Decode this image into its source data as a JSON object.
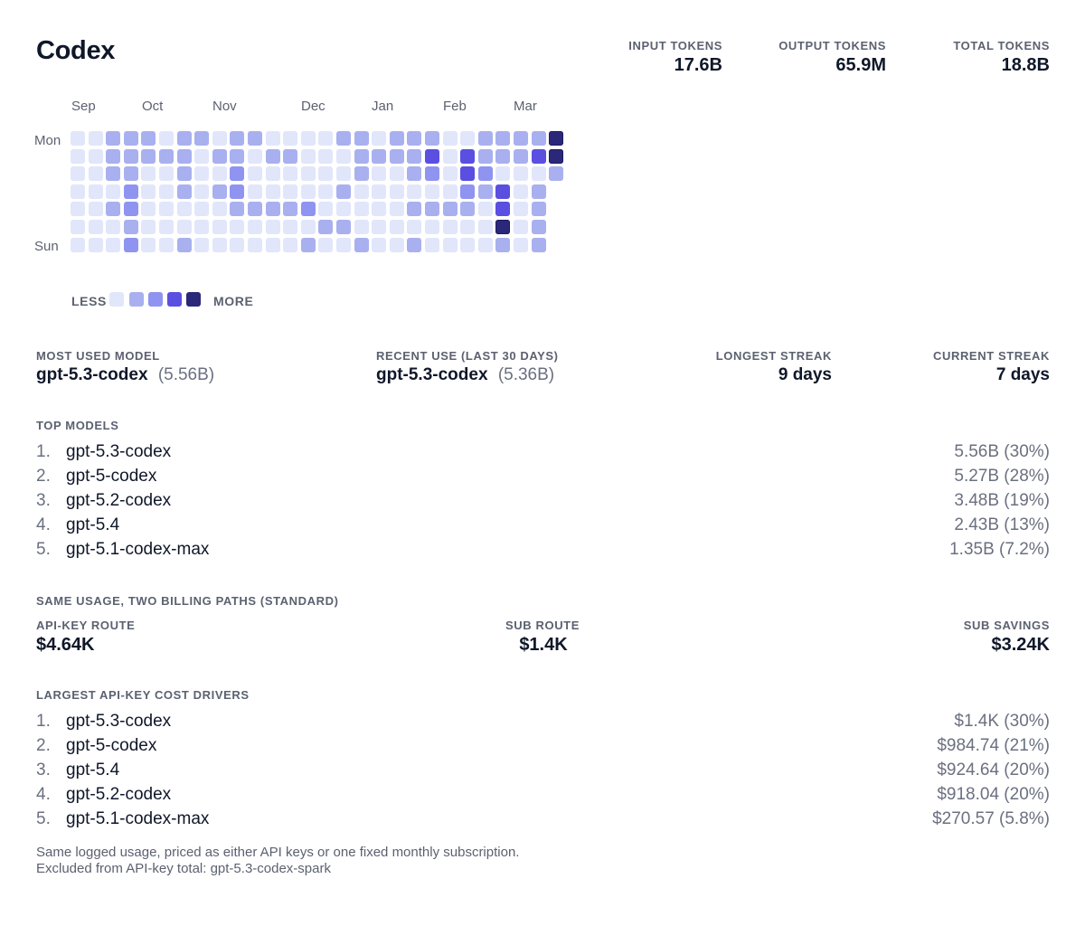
{
  "title": "Codex",
  "stats": [
    {
      "label": "INPUT TOKENS",
      "value": "17.6B"
    },
    {
      "label": "OUTPUT TOKENS",
      "value": "65.9M"
    },
    {
      "label": "TOTAL TOKENS",
      "value": "18.8B"
    }
  ],
  "heatmap": {
    "months": [
      "Sep",
      "Oct",
      "Nov",
      "Dec",
      "Jan",
      "Feb",
      "Mar"
    ],
    "day_labels": [
      "Mon",
      "Sun"
    ],
    "colors": [
      "#e1e6fa",
      "#a9b0ef",
      "#8f94f0",
      "#5a4fe0",
      "#2b287a"
    ],
    "levels": [
      [
        0,
        0,
        1,
        1,
        1,
        0,
        1,
        1,
        0,
        1,
        1,
        0,
        0,
        0,
        0,
        1,
        1,
        0,
        1,
        1,
        1,
        0,
        0,
        1,
        1,
        1,
        1,
        4
      ],
      [
        0,
        0,
        1,
        1,
        1,
        1,
        1,
        0,
        1,
        1,
        0,
        1,
        1,
        0,
        0,
        0,
        1,
        1,
        1,
        1,
        3,
        0,
        3,
        1,
        1,
        1,
        3,
        4
      ],
      [
        0,
        0,
        1,
        1,
        0,
        0,
        1,
        0,
        0,
        2,
        0,
        0,
        0,
        0,
        0,
        0,
        1,
        0,
        0,
        1,
        2,
        0,
        3,
        2,
        0,
        0,
        0,
        1
      ],
      [
        0,
        0,
        0,
        2,
        0,
        0,
        1,
        0,
        1,
        2,
        0,
        0,
        0,
        0,
        0,
        1,
        0,
        0,
        0,
        0,
        0,
        0,
        2,
        1,
        3,
        0,
        1
      ],
      [
        0,
        0,
        1,
        2,
        0,
        0,
        0,
        0,
        0,
        1,
        1,
        1,
        1,
        2,
        0,
        0,
        0,
        0,
        0,
        1,
        1,
        1,
        1,
        0,
        3,
        0,
        1
      ],
      [
        0,
        0,
        0,
        1,
        0,
        0,
        0,
        0,
        0,
        0,
        0,
        0,
        0,
        0,
        1,
        1,
        0,
        0,
        0,
        0,
        0,
        0,
        0,
        0,
        4,
        0,
        1
      ],
      [
        0,
        0,
        0,
        2,
        0,
        0,
        1,
        0,
        0,
        0,
        0,
        0,
        0,
        1,
        0,
        0,
        1,
        0,
        0,
        1,
        0,
        0,
        0,
        0,
        1,
        0,
        1
      ]
    ],
    "legend_less": "LESS",
    "legend_more": "MORE"
  },
  "summary": {
    "most_used": {
      "label": "MOST USED MODEL",
      "model": "gpt-5.3-codex",
      "value": "(5.56B)"
    },
    "recent": {
      "label": "RECENT USE (LAST 30 DAYS)",
      "model": "gpt-5.3-codex",
      "value": "(5.36B)"
    },
    "longest": {
      "label": "LONGEST STREAK",
      "value": "9 days"
    },
    "current": {
      "label": "CURRENT STREAK",
      "value": "7 days"
    }
  },
  "top_models": {
    "title": "TOP MODELS",
    "items": [
      {
        "rank": "1.",
        "name": "gpt-5.3-codex",
        "amount": "5.56B (30%)"
      },
      {
        "rank": "2.",
        "name": "gpt-5-codex",
        "amount": "5.27B (28%)"
      },
      {
        "rank": "3.",
        "name": "gpt-5.2-codex",
        "amount": "3.48B (19%)"
      },
      {
        "rank": "4.",
        "name": "gpt-5.4",
        "amount": "2.43B (13%)"
      },
      {
        "rank": "5.",
        "name": "gpt-5.1-codex-max",
        "amount": "1.35B (7.2%)"
      }
    ]
  },
  "billing": {
    "title": "SAME USAGE, TWO BILLING PATHS (STANDARD)",
    "api_key": {
      "label": "API-KEY ROUTE",
      "value": "$4.64K"
    },
    "sub": {
      "label": "SUB ROUTE",
      "value": "$1.4K"
    },
    "savings": {
      "label": "SUB SAVINGS",
      "value": "$3.24K"
    }
  },
  "cost_drivers": {
    "title": "LARGEST API-KEY COST DRIVERS",
    "items": [
      {
        "rank": "1.",
        "name": "gpt-5.3-codex",
        "amount": "$1.4K (30%)"
      },
      {
        "rank": "2.",
        "name": "gpt-5-codex",
        "amount": "$984.74 (21%)"
      },
      {
        "rank": "3.",
        "name": "gpt-5.4",
        "amount": "$924.64 (20%)"
      },
      {
        "rank": "4.",
        "name": "gpt-5.2-codex",
        "amount": "$918.04 (20%)"
      },
      {
        "rank": "5.",
        "name": "gpt-5.1-codex-max",
        "amount": "$270.57 (5.8%)"
      }
    ]
  },
  "notes": [
    "Same logged usage, priced as either API keys or one fixed monthly subscription.",
    "Excluded from API-key total: gpt-5.3-codex-spark"
  ]
}
